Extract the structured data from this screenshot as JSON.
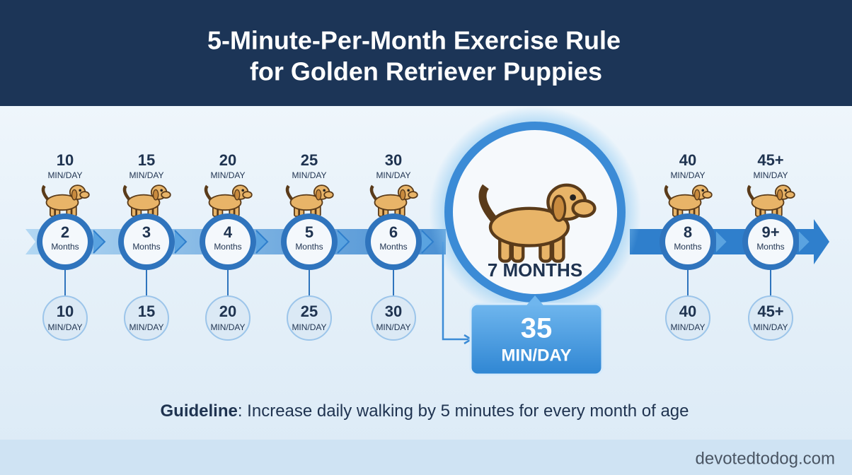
{
  "header": {
    "title_lines": [
      "5-Minute-Per-Month Exercise Rule",
      "for Golden Retriever Puppies"
    ]
  },
  "stages": [
    {
      "top_value": "10",
      "top_unit": "MIN/DAY",
      "age": "2",
      "age_unit": "Months",
      "bottom_value": "10",
      "bottom_unit": "MIN/DAY"
    },
    {
      "top_value": "15",
      "top_unit": "MIN/DAY",
      "age": "3",
      "age_unit": "Months",
      "bottom_value": "15",
      "bottom_unit": "MIN/DAY"
    },
    {
      "top_value": "20",
      "top_unit": "MIN/DAY",
      "age": "4",
      "age_unit": "Months",
      "bottom_value": "20",
      "bottom_unit": "MIN/DAY"
    },
    {
      "top_value": "25",
      "top_unit": "MIN/DAY",
      "age": "5",
      "age_unit": "Months",
      "bottom_value": "25",
      "bottom_unit": "MIN/DAY"
    },
    {
      "top_value": "30",
      "top_unit": "MIN/DAY",
      "age": "6",
      "age_unit": "Months",
      "bottom_value": "30",
      "bottom_unit": "MIN/DAY"
    },
    {
      "top_value": "40",
      "top_unit": "MIN/DAY",
      "age": "8",
      "age_unit": "Months",
      "bottom_value": "40",
      "bottom_unit": "MIN/DAY"
    },
    {
      "top_value": "45+",
      "top_unit": "MIN/DAY",
      "age": "9+",
      "age_unit": "Months",
      "bottom_value": "45+",
      "bottom_unit": "MIN/DAY"
    }
  ],
  "highlight": {
    "age": "7 MONTHS",
    "value": "35",
    "unit": "MIN/DAY"
  },
  "guideline": {
    "label": "Guideline",
    "text": ": Increase daily walking by 5 minutes for every month of age"
  },
  "footer": {
    "site": "devotedtodog.com"
  }
}
